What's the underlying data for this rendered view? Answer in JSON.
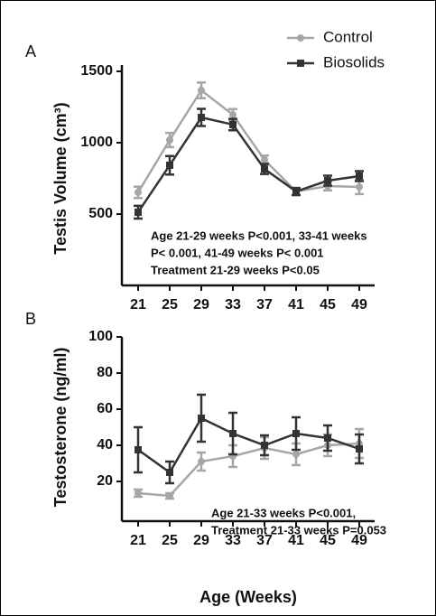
{
  "chart_data": [
    {
      "type": "line",
      "panel_label": "A",
      "ylabel": "Testis Volume (cm³)",
      "categories": [
        "21",
        "25",
        "29",
        "33",
        "37",
        "41",
        "45",
        "49"
      ],
      "series": [
        {
          "name": "Control",
          "color": "#a6a6a6",
          "values": [
            652,
            1019,
            1367,
            1196,
            880,
            658,
            696,
            690
          ],
          "errors": [
            40,
            50,
            55,
            40,
            30,
            25,
            30,
            50
          ]
        },
        {
          "name": "Biosolids",
          "color": "#333333",
          "values": [
            513,
            842,
            1177,
            1127,
            816,
            658,
            734,
            766
          ],
          "errors": [
            45,
            65,
            60,
            40,
            35,
            25,
            35,
            35
          ]
        }
      ],
      "ylim": [
        0,
        1500
      ],
      "yticks": [
        500,
        1000,
        1500
      ],
      "annotation": [
        "Age 21-29 weeks P<0.001, 33-41 weeks",
        "P< 0.001, 41-49 weeks P< 0.001",
        "Treatment 21-29 weeks P<0.05"
      ]
    },
    {
      "type": "line",
      "panel_label": "B",
      "ylabel": "Testosterone (ng/ml)",
      "xlabel": "Age (Weeks)",
      "categories": [
        "21",
        "25",
        "29",
        "33",
        "37",
        "41",
        "45",
        "49"
      ],
      "series": [
        {
          "name": "Control",
          "color": "#a6a6a6",
          "values": [
            13.5,
            12,
            31,
            34,
            38.5,
            35,
            40,
            41
          ],
          "errors": [
            2,
            1.5,
            5,
            6,
            6,
            6,
            6,
            8
          ]
        },
        {
          "name": "Biosolids",
          "color": "#333333",
          "values": [
            37.5,
            25,
            55,
            46.5,
            40,
            46.5,
            44,
            38
          ],
          "errors": [
            12.5,
            6,
            13,
            11.5,
            5.5,
            9,
            7,
            8
          ]
        }
      ],
      "ylim": [
        0,
        100
      ],
      "yticks": [
        20,
        40,
        60,
        80,
        100
      ],
      "annotation": [
        "Age 21-33 weeks P<0.001,",
        "Treatment 21-33 weeks P=0.053"
      ]
    }
  ]
}
